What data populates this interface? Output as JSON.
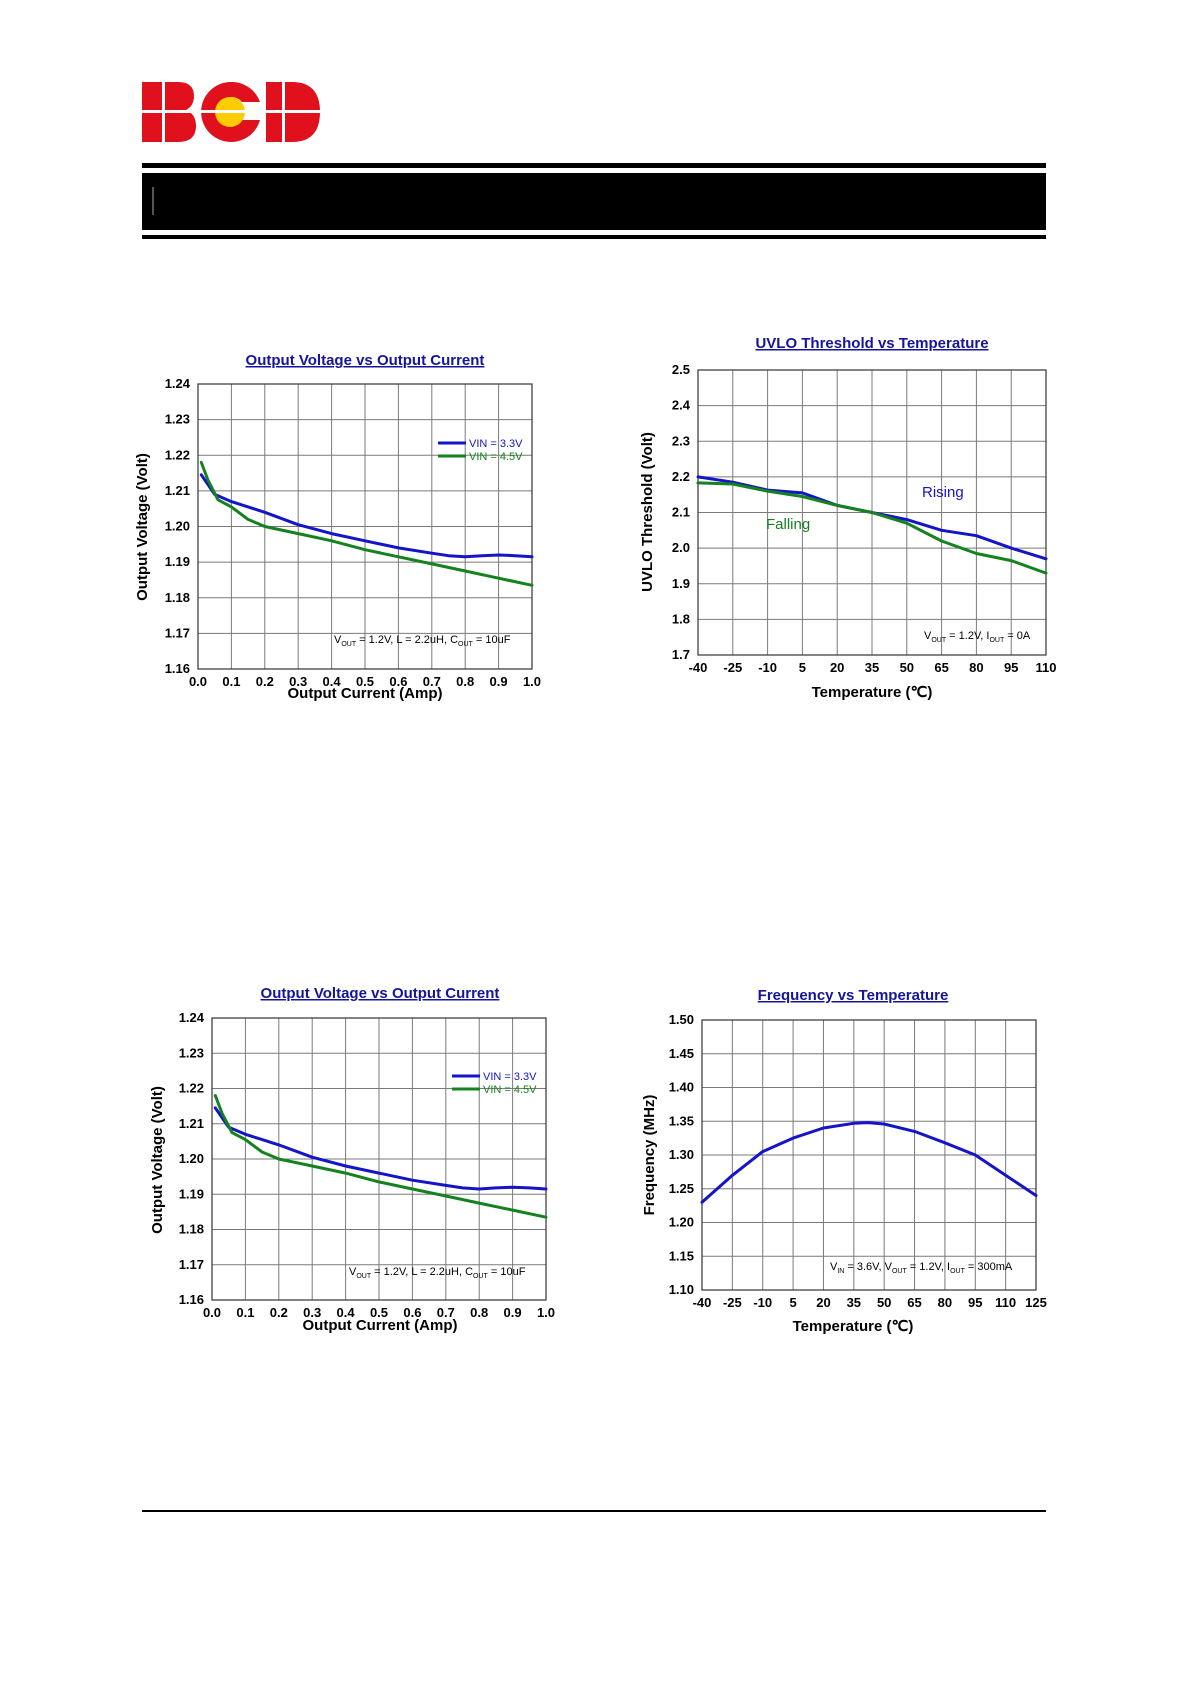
{
  "logo": {
    "text": "BCD",
    "colors": {
      "letters": "#e0101c",
      "dot": "#ffcc00"
    }
  },
  "colors": {
    "blue": "#1414c8",
    "green": "#14821e",
    "title": "#15159a",
    "grid": "#7a7a7a"
  },
  "chart_data": [
    {
      "type": "line",
      "title": "Output Voltage vs Output Current",
      "xlabel": "Output Current (Amp)",
      "ylabel": "Output Voltage (Volt)",
      "xlim": [
        0,
        1
      ],
      "ylim": [
        1.16,
        1.24
      ],
      "xticks": [
        "0.0",
        "0.1",
        "0.2",
        "0.3",
        "0.4",
        "0.5",
        "0.6",
        "0.7",
        "0.8",
        "0.9",
        "1.0"
      ],
      "yticks": [
        "1.16",
        "1.17",
        "1.18",
        "1.19",
        "1.20",
        "1.21",
        "1.22",
        "1.23",
        "1.24"
      ],
      "grid": true,
      "legend": "top-right",
      "annotation": {
        "v": "V",
        "vsub": "OUT",
        "mid": " = 1.2V, L = 2.2uH, C",
        "csub": "OUT",
        "end": " = 10uF"
      },
      "series": [
        {
          "name": "VIN = 3.3V",
          "color": "#1414c8",
          "points": [
            [
              0.01,
              1.2145
            ],
            [
              0.05,
              1.209
            ],
            [
              0.1,
              1.207
            ],
            [
              0.15,
              1.2055
            ],
            [
              0.2,
              1.204
            ],
            [
              0.3,
              1.2005
            ],
            [
              0.4,
              1.198
            ],
            [
              0.5,
              1.196
            ],
            [
              0.6,
              1.194
            ],
            [
              0.7,
              1.1925
            ],
            [
              0.75,
              1.1918
            ],
            [
              0.8,
              1.1915
            ],
            [
              0.85,
              1.1918
            ],
            [
              0.9,
              1.192
            ],
            [
              0.95,
              1.1918
            ],
            [
              1.0,
              1.1915
            ]
          ]
        },
        {
          "name": "VIN = 4.5V",
          "color": "#14821e",
          "points": [
            [
              0.01,
              1.218
            ],
            [
              0.03,
              1.213
            ],
            [
              0.06,
              1.2075
            ],
            [
              0.1,
              1.2055
            ],
            [
              0.15,
              1.202
            ],
            [
              0.2,
              1.2
            ],
            [
              0.3,
              1.198
            ],
            [
              0.4,
              1.196
            ],
            [
              0.5,
              1.1935
            ],
            [
              0.6,
              1.1915
            ],
            [
              0.7,
              1.1895
            ],
            [
              0.8,
              1.1875
            ],
            [
              0.9,
              1.1855
            ],
            [
              1.0,
              1.1835
            ]
          ]
        }
      ]
    },
    {
      "type": "line",
      "title": "UVLO Threshold vs Temperature",
      "xlabel": "Temperature (℃)",
      "ylabel": "UVLO Threshold (Volt)",
      "xlim": [
        -40,
        110
      ],
      "ylim": [
        1.7,
        2.5
      ],
      "xticks": [
        "-40",
        "-25",
        "-10",
        "5",
        "20",
        "35",
        "50",
        "65",
        "80",
        "95",
        "110"
      ],
      "yticks": [
        "1.7",
        "1.8",
        "1.9",
        "2.0",
        "2.1",
        "2.2",
        "2.3",
        "2.4",
        "2.5"
      ],
      "grid": true,
      "annotation": {
        "v": "V",
        "vsub": "OUT",
        "mid": " = 1.2V, I",
        "csub": "OUT",
        "end": " = 0A"
      },
      "series": [
        {
          "name": "Rising",
          "color": "#1414c8",
          "points": [
            [
              -40,
              2.2
            ],
            [
              -25,
              2.185
            ],
            [
              -10,
              2.163
            ],
            [
              5,
              2.155
            ],
            [
              20,
              2.12
            ],
            [
              35,
              2.1
            ],
            [
              50,
              2.08
            ],
            [
              65,
              2.05
            ],
            [
              80,
              2.035
            ],
            [
              95,
              2.0
            ],
            [
              110,
              1.97
            ]
          ]
        },
        {
          "name": "Falling",
          "color": "#14821e",
          "points": [
            [
              -40,
              2.183
            ],
            [
              -25,
              2.18
            ],
            [
              -10,
              2.16
            ],
            [
              5,
              2.145
            ],
            [
              20,
              2.12
            ],
            [
              35,
              2.1
            ],
            [
              50,
              2.07
            ],
            [
              65,
              2.02
            ],
            [
              80,
              1.985
            ],
            [
              95,
              1.965
            ],
            [
              110,
              1.93
            ]
          ]
        }
      ]
    },
    {
      "type": "line",
      "title": "Output Voltage vs Output Current",
      "xlabel": "Output Current (Amp)",
      "ylabel": "Output Voltage (Volt)",
      "xlim": [
        0,
        1
      ],
      "ylim": [
        1.16,
        1.24
      ],
      "xticks": [
        "0.0",
        "0.1",
        "0.2",
        "0.3",
        "0.4",
        "0.5",
        "0.6",
        "0.7",
        "0.8",
        "0.9",
        "1.0"
      ],
      "yticks": [
        "1.16",
        "1.17",
        "1.18",
        "1.19",
        "1.20",
        "1.21",
        "1.22",
        "1.23",
        "1.24"
      ],
      "grid": true,
      "legend": "top-right",
      "annotation": {
        "v": "V",
        "vsub": "OUT",
        "mid": " = 1.2V, L = 2.2uH, C",
        "csub": "OUT",
        "end": " = 10uF"
      },
      "series": [
        {
          "name": "VIN = 3.3V",
          "color": "#1414c8",
          "points": [
            [
              0.01,
              1.2145
            ],
            [
              0.05,
              1.209
            ],
            [
              0.1,
              1.207
            ],
            [
              0.15,
              1.2055
            ],
            [
              0.2,
              1.204
            ],
            [
              0.3,
              1.2005
            ],
            [
              0.4,
              1.198
            ],
            [
              0.5,
              1.196
            ],
            [
              0.6,
              1.194
            ],
            [
              0.7,
              1.1925
            ],
            [
              0.75,
              1.1918
            ],
            [
              0.8,
              1.1915
            ],
            [
              0.85,
              1.1918
            ],
            [
              0.9,
              1.192
            ],
            [
              0.95,
              1.1918
            ],
            [
              1.0,
              1.1915
            ]
          ]
        },
        {
          "name": "VIN = 4.5V",
          "color": "#14821e",
          "points": [
            [
              0.01,
              1.218
            ],
            [
              0.03,
              1.213
            ],
            [
              0.06,
              1.2075
            ],
            [
              0.1,
              1.2055
            ],
            [
              0.15,
              1.202
            ],
            [
              0.2,
              1.2
            ],
            [
              0.3,
              1.198
            ],
            [
              0.4,
              1.196
            ],
            [
              0.5,
              1.1935
            ],
            [
              0.6,
              1.1915
            ],
            [
              0.7,
              1.1895
            ],
            [
              0.8,
              1.1875
            ],
            [
              0.9,
              1.1855
            ],
            [
              1.0,
              1.1835
            ]
          ]
        }
      ]
    },
    {
      "type": "line",
      "title": "Frequency vs Temperature",
      "xlabel": "Temperature (℃)",
      "ylabel": "Frequency (MHz)",
      "xlim": [
        -40,
        125
      ],
      "ylim": [
        1.1,
        1.5
      ],
      "xticks": [
        "-40",
        "-25",
        "-10",
        "5",
        "20",
        "35",
        "50",
        "65",
        "80",
        "95",
        "110",
        "125"
      ],
      "yticks": [
        "1.10",
        "1.15",
        "1.20",
        "1.25",
        "1.30",
        "1.35",
        "1.40",
        "1.45",
        "1.50"
      ],
      "grid": true,
      "annotation": {
        "v": "V",
        "vsub": "IN",
        "mid": " = 3.6V, V",
        "csub": "OUT",
        "end": " = 1.2V, I",
        "sub3": "OUT",
        "end3": " = 300mA"
      },
      "series": [
        {
          "name": "",
          "color": "#1414c8",
          "points": [
            [
              -40,
              1.23
            ],
            [
              -25,
              1.27
            ],
            [
              -10,
              1.305
            ],
            [
              5,
              1.325
            ],
            [
              20,
              1.34
            ],
            [
              35,
              1.347
            ],
            [
              42,
              1.348
            ],
            [
              50,
              1.346
            ],
            [
              65,
              1.335
            ],
            [
              80,
              1.318
            ],
            [
              95,
              1.3
            ],
            [
              110,
              1.27
            ],
            [
              125,
              1.24
            ]
          ]
        }
      ]
    }
  ]
}
